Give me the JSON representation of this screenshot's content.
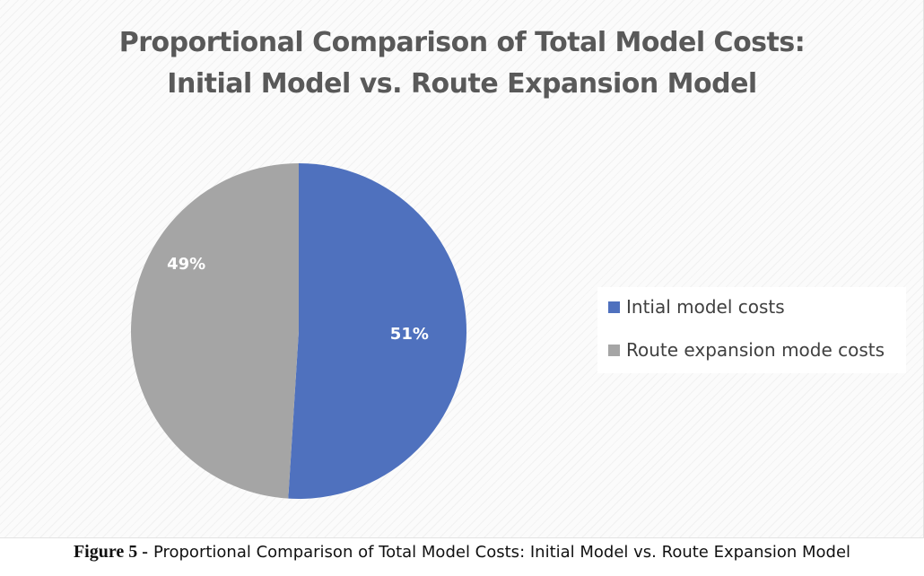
{
  "colors": {
    "initial": "#4f71be",
    "route": "#a5a5a5"
  },
  "chart_data": {
    "type": "pie",
    "title_lines": [
      "Proportional Comparison of Total Model Costs:",
      "Initial Model vs. Route Expansion Model"
    ],
    "categories": [
      "Intial model costs",
      "Route expansion mode costs"
    ],
    "values": [
      51,
      49
    ],
    "labels": [
      "51%",
      "49%"
    ],
    "legend_position": "right"
  },
  "caption": {
    "figure_label": "Figure 5 -",
    "text": "Proportional Comparison of Total Model Costs: Initial Model vs. Route Expansion Model"
  }
}
